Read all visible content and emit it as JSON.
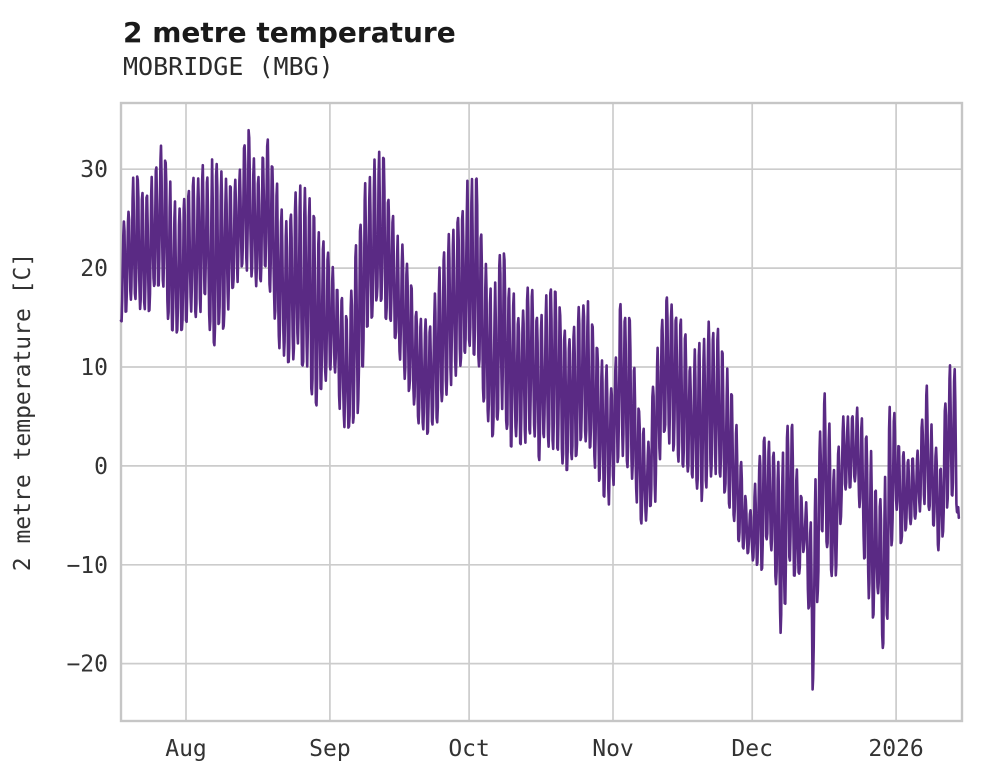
{
  "chart_data": {
    "type": "line",
    "title": "2 metre temperature",
    "subtitle": "MOBRIDGE (MBG)",
    "ylabel": "2 metre temperature [C]",
    "series_name": "2 metre temperature at MOBRIDGE (MBG)",
    "line_color": "#5a2a84",
    "grid_color": "#cccccc",
    "frame_color": "#c6c6c6",
    "tick_color": "#333333",
    "background": "#ffffff",
    "grid": "on",
    "legend": "none",
    "noise_seed": 13,
    "x_axis": {
      "range_days": [
        0,
        181.2
      ],
      "tick_days": [
        14,
        45,
        75,
        106,
        136,
        167
      ],
      "tick_labels": [
        "Aug",
        "Sep",
        "Oct",
        "Nov",
        "Dec",
        "2026"
      ]
    },
    "y_axis": {
      "range": [
        -25.8,
        36.7
      ],
      "tick_values": [
        30,
        20,
        10,
        0,
        -10,
        -20
      ],
      "tick_labels": [
        "30",
        "20",
        "10",
        "0",
        "−10",
        "−20"
      ]
    },
    "summary": {
      "max_value_c": 34.4,
      "max_at_day": 27.5,
      "min_value_c": -22.6,
      "min_at_day": 149,
      "start_value_c": 15,
      "end_value_c": -8
    },
    "envelope": {
      "description": "Daily low/high envelope of the temperature trace, read from the plot. Each knot is [day_index_from_trace_start, low_C, high_C]; day 14 = Aug 1 gridline.",
      "knots": [
        [
          0,
          14.5,
          25.5
        ],
        [
          1.5,
          16,
          26
        ],
        [
          3,
          17,
          30.2
        ],
        [
          5,
          15,
          27
        ],
        [
          6.5,
          16,
          29
        ],
        [
          8.5,
          17.5,
          32.6
        ],
        [
          10,
          14,
          30
        ],
        [
          12,
          13.5,
          26
        ],
        [
          14,
          14,
          27.5
        ],
        [
          16,
          15,
          29.5
        ],
        [
          18,
          16,
          31
        ],
        [
          20,
          12,
          31
        ],
        [
          22,
          13,
          29.5
        ],
        [
          24,
          18,
          28
        ],
        [
          26,
          19,
          31
        ],
        [
          27.5,
          20,
          34.4
        ],
        [
          29,
          18,
          30
        ],
        [
          31,
          19,
          32.5
        ],
        [
          32,
          18,
          33.3
        ],
        [
          34,
          12,
          28
        ],
        [
          36,
          10.5,
          24
        ],
        [
          38,
          11,
          28.5
        ],
        [
          40,
          9.5,
          28
        ],
        [
          42,
          5.5,
          25
        ],
        [
          44,
          8,
          22.5
        ],
        [
          45,
          10,
          22
        ],
        [
          47,
          6,
          18
        ],
        [
          49,
          2.3,
          15
        ],
        [
          51,
          5,
          25
        ],
        [
          53,
          14,
          29.5
        ],
        [
          55,
          16,
          32.2
        ],
        [
          57,
          15,
          30.8
        ],
        [
          59,
          13,
          24
        ],
        [
          61,
          9,
          22
        ],
        [
          63,
          6,
          17
        ],
        [
          65,
          2.2,
          15
        ],
        [
          67,
          3,
          16
        ],
        [
          69,
          5.5,
          21
        ],
        [
          71,
          8,
          24
        ],
        [
          73,
          10,
          27
        ],
        [
          75,
          12,
          29.3
        ],
        [
          76.5,
          11,
          29.7
        ],
        [
          78,
          5,
          22
        ],
        [
          80,
          3,
          17
        ],
        [
          82,
          6,
          22.3
        ],
        [
          84,
          2,
          19
        ],
        [
          86,
          1.5,
          14
        ],
        [
          88,
          3,
          19.5
        ],
        [
          90,
          0.5,
          14
        ],
        [
          92,
          2,
          18
        ],
        [
          94,
          1,
          17.5
        ],
        [
          96,
          -0.5,
          13
        ],
        [
          98,
          1,
          15
        ],
        [
          100,
          2.5,
          18.4
        ],
        [
          102,
          0,
          14
        ],
        [
          104,
          -3,
          11
        ],
        [
          105.5,
          -4.2,
          9
        ],
        [
          106.5,
          -2,
          12
        ],
        [
          108,
          1,
          17.8
        ],
        [
          110,
          -1,
          14
        ],
        [
          112,
          -5.8,
          5
        ],
        [
          113.5,
          -6,
          2
        ],
        [
          115,
          -4,
          10
        ],
        [
          117,
          2,
          17.7
        ],
        [
          119,
          1,
          16
        ],
        [
          121,
          0,
          14.5
        ],
        [
          123,
          -1,
          11
        ],
        [
          125,
          -3.7,
          13.5
        ],
        [
          127,
          -1,
          15.4
        ],
        [
          129,
          -2,
          13.5
        ],
        [
          131,
          -4,
          9
        ],
        [
          133,
          -7.5,
          3
        ],
        [
          135,
          -9,
          -5
        ],
        [
          136,
          -9.5,
          -4
        ],
        [
          138,
          -10.5,
          3
        ],
        [
          140,
          -8,
          2.5
        ],
        [
          142.3,
          -18,
          1
        ],
        [
          144.3,
          -11,
          5.6
        ],
        [
          146,
          -11.2,
          -2
        ],
        [
          147.3,
          -8,
          -3.5
        ],
        [
          148.2,
          -15,
          -4
        ],
        [
          149,
          -22.6,
          -5
        ],
        [
          150.2,
          -12,
          2
        ],
        [
          151.4,
          -5,
          8.9
        ],
        [
          153.5,
          -14.3,
          1
        ],
        [
          155.6,
          -2.5,
          5
        ],
        [
          157.8,
          -2,
          5.5
        ],
        [
          158.9,
          -3,
          6.3
        ],
        [
          161.5,
          -16.5,
          2
        ],
        [
          163,
          -13,
          -4
        ],
        [
          164.5,
          -20.5,
          -2
        ],
        [
          165.8,
          -10,
          7.2
        ],
        [
          167,
          -5,
          4.5
        ],
        [
          168,
          -7.8,
          2
        ],
        [
          169.5,
          -6.5,
          0.5
        ],
        [
          171.6,
          -5,
          2
        ],
        [
          173.6,
          -3.5,
          8.2
        ],
        [
          175,
          -6,
          3
        ],
        [
          176.6,
          -9.6,
          0
        ],
        [
          178.5,
          -3,
          11.7
        ],
        [
          179.8,
          -4,
          9.5
        ],
        [
          180.6,
          -8,
          -7
        ]
      ]
    }
  }
}
